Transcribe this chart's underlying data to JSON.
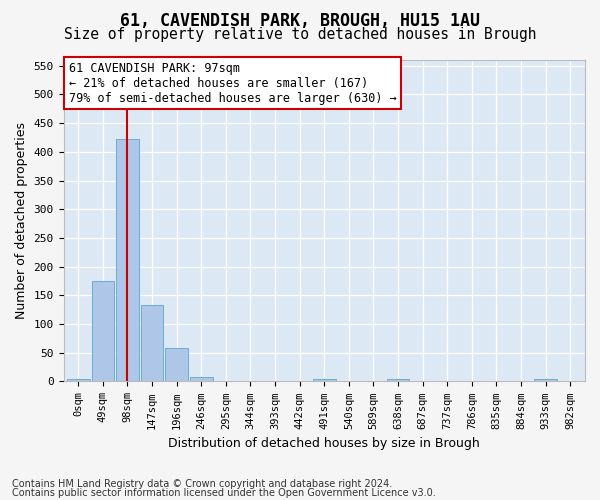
{
  "title_line1": "61, CAVENDISH PARK, BROUGH, HU15 1AU",
  "title_line2": "Size of property relative to detached houses in Brough",
  "xlabel": "Distribution of detached houses by size in Brough",
  "ylabel": "Number of detached properties",
  "bins": [
    "0sqm",
    "49sqm",
    "98sqm",
    "147sqm",
    "196sqm",
    "246sqm",
    "295sqm",
    "344sqm",
    "393sqm",
    "442sqm",
    "491sqm",
    "540sqm",
    "589sqm",
    "638sqm",
    "687sqm",
    "737sqm",
    "786sqm",
    "835sqm",
    "884sqm",
    "933sqm",
    "982sqm"
  ],
  "bar_values": [
    5,
    175,
    422,
    133,
    58,
    8,
    0,
    0,
    0,
    0,
    5,
    0,
    0,
    5,
    0,
    0,
    0,
    0,
    0,
    5,
    0
  ],
  "bar_color": "#aec6e8",
  "bar_edge_color": "#6aaed6",
  "ylim": [
    0,
    560
  ],
  "yticks": [
    0,
    50,
    100,
    150,
    200,
    250,
    300,
    350,
    400,
    450,
    500,
    550
  ],
  "property_bin_index": 2,
  "vline_color": "#cc0000",
  "annotation_text": "61 CAVENDISH PARK: 97sqm\n← 21% of detached houses are smaller (167)\n79% of semi-detached houses are larger (630) →",
  "annotation_box_facecolor": "#ffffff",
  "annotation_box_edgecolor": "#cc0000",
  "footer_line1": "Contains HM Land Registry data © Crown copyright and database right 2024.",
  "footer_line2": "Contains public sector information licensed under the Open Government Licence v3.0.",
  "plot_bg_color": "#dce9f5",
  "grid_color": "#ffffff",
  "fig_bg_color": "#f5f5f5",
  "title_fontsize": 12,
  "subtitle_fontsize": 10.5,
  "axis_label_fontsize": 9,
  "tick_fontsize": 7.5,
  "annotation_fontsize": 8.5,
  "footer_fontsize": 7
}
